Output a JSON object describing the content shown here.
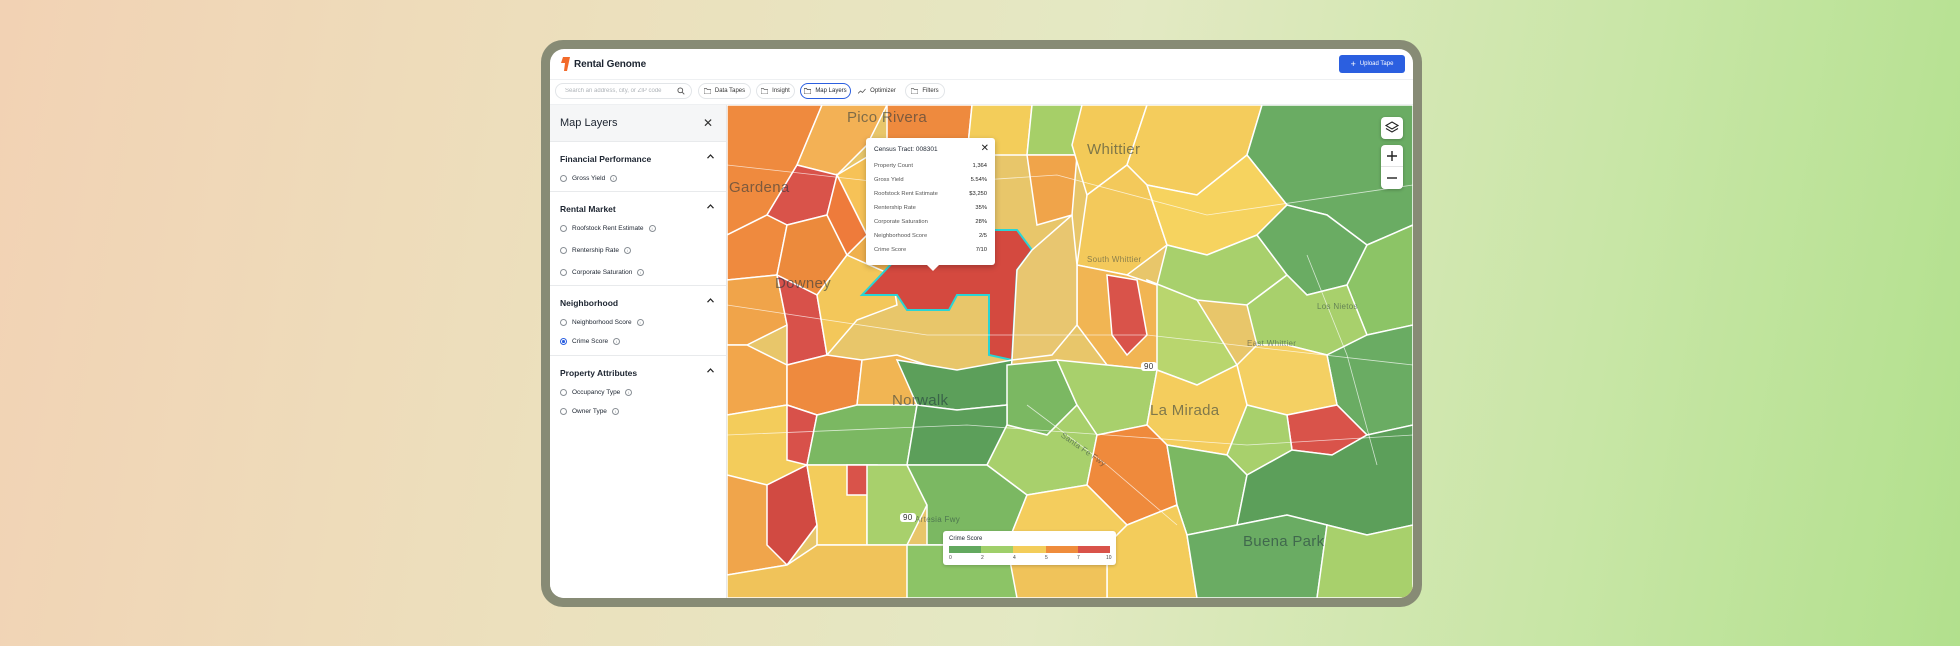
{
  "app": {
    "name": "Rental Genome",
    "upload_label": "Upload Tape"
  },
  "search": {
    "placeholder": "Search an address, city, or ZIP code"
  },
  "tabs": [
    {
      "label": "Data Tapes",
      "icon": "folder-icon"
    },
    {
      "label": "Insight",
      "icon": "folder-icon"
    },
    {
      "label": "Map Layers",
      "icon": "folder-icon",
      "active": true
    },
    {
      "label": "Optimizer",
      "icon": "trend-icon"
    },
    {
      "label": "Filters",
      "icon": "folder-icon"
    }
  ],
  "panel": {
    "title": "Map Layers",
    "sections": [
      {
        "title": "Financial Performance",
        "options": [
          {
            "label": "Gross Yield",
            "selected": false
          }
        ]
      },
      {
        "title": "Rental Market",
        "options": [
          {
            "label": "Roofstock Rent Estimate",
            "selected": false
          },
          {
            "label": "Rentership Rate",
            "selected": false
          },
          {
            "label": "Corporate Saturation",
            "selected": false
          }
        ]
      },
      {
        "title": "Neighborhood",
        "options": [
          {
            "label": "Neighborhood Score",
            "selected": false
          },
          {
            "label": "Crime Score",
            "selected": true
          }
        ]
      },
      {
        "title": "Property Attributes",
        "options": [
          {
            "label": "Occupancy Type",
            "selected": false
          },
          {
            "label": "Owner Type",
            "selected": false
          }
        ]
      }
    ]
  },
  "map": {
    "places": [
      "Pico Rivera",
      "Whittier",
      "Downey",
      "Norwalk",
      "La Mirada",
      "Buena Park",
      "Gardena",
      "South Whittier",
      "East Whittier",
      "Los Nietos",
      "Artesia Fwy",
      "Santa Fe Fwy"
    ],
    "highway_shields": [
      "90",
      "90"
    ]
  },
  "popup": {
    "title": "Census Tract: 008301",
    "rows": [
      {
        "label": "Property Count",
        "value": "1,364"
      },
      {
        "label": "Gross Yield",
        "value": "5.54%"
      },
      {
        "label": "Roofstock Rent Estimate",
        "value": "$3,250"
      },
      {
        "label": "Rentership Rate",
        "value": "35%"
      },
      {
        "label": "Corporate Saturation",
        "value": "28%"
      },
      {
        "label": "Neighborhood Score",
        "value": "2/5"
      },
      {
        "label": "Crime Score",
        "value": "7/10"
      }
    ]
  },
  "legend": {
    "title": "Crime Score",
    "ticks": [
      "0",
      "2",
      "4",
      "5",
      "7",
      "10"
    ],
    "colors": [
      "#63a95f",
      "#9fcf6a",
      "#f3cd5a",
      "#ef8c3c",
      "#d9534a"
    ]
  },
  "colors": {
    "accent": "#2b5fe0",
    "highlight": "#2bd4d4"
  }
}
